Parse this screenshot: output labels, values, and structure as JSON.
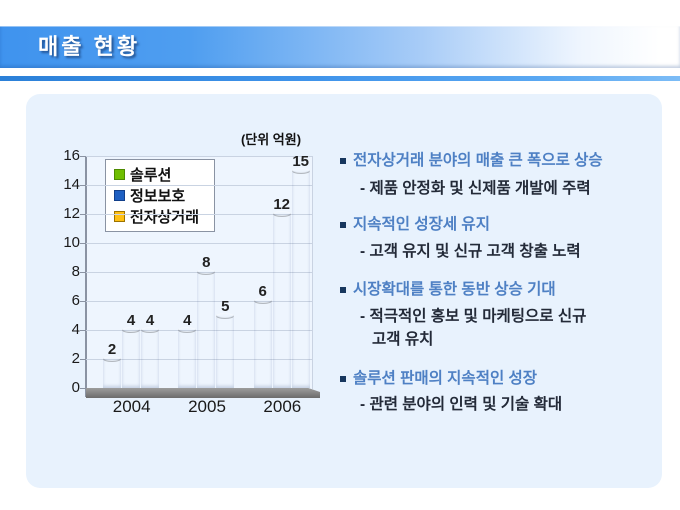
{
  "slide": {
    "title": "매출 현황"
  },
  "chart": {
    "unit_label": "(단위 억원)"
  },
  "chart_data": {
    "type": "bar",
    "categories": [
      "2004",
      "2005",
      "2006"
    ],
    "series": [
      {
        "name": "솔루션",
        "values": [
          2,
          4,
          6
        ],
        "color": "#6fbe00",
        "color_light": "#9bd82a",
        "color_dark": "#4d8a00"
      },
      {
        "name": "정보보호",
        "values": [
          4,
          8,
          12
        ],
        "color": "#1e5fc2",
        "color_light": "#4a90e8",
        "color_dark": "#123f8a"
      },
      {
        "name": "전자상거래",
        "values": [
          4,
          5,
          15
        ],
        "color": "#ffc013",
        "color_light": "#ffdb5e",
        "color_dark": "#9c7300"
      }
    ],
    "title": "(단위 억원)",
    "xlabel": "",
    "ylabel": "",
    "ylim": [
      0,
      16
    ],
    "ytick_step": 2,
    "legend_position": "top-left",
    "grid": true
  },
  "right_panel": {
    "sections": [
      {
        "heading": "전자상거래 분야의 매출 큰 폭으로 상승",
        "sub_lines": [
          "- 제품 안정화 및 신제품 개발에 주력"
        ]
      },
      {
        "heading": "지속적인 성장세 유지",
        "sub_lines": [
          "- 고객 유지 및 신규 고객 창출 노력"
        ]
      },
      {
        "heading": "시장확대를 통한 동반 상승 기대",
        "sub_lines": [
          "- 적극적인 홍보 및 마케팅으로 신규",
          "고객 유치"
        ]
      },
      {
        "heading": "솔루션 판매의 지속적인 성장",
        "sub_lines": [
          "- 관련 분야의 인력 및 기술 확대"
        ]
      }
    ]
  },
  "colors": {
    "header_blue": "#3f93ee",
    "header_line": "#2b80d8",
    "panel_bg": "#e8f2fd",
    "heading_text": "#4e80c4",
    "sub_text": "#232a38",
    "bullet_marker": "#17375e",
    "axis_text": "#1a1a1a",
    "grid_line": "#c9d3e2",
    "floor_gray": "#7a7a7a"
  }
}
